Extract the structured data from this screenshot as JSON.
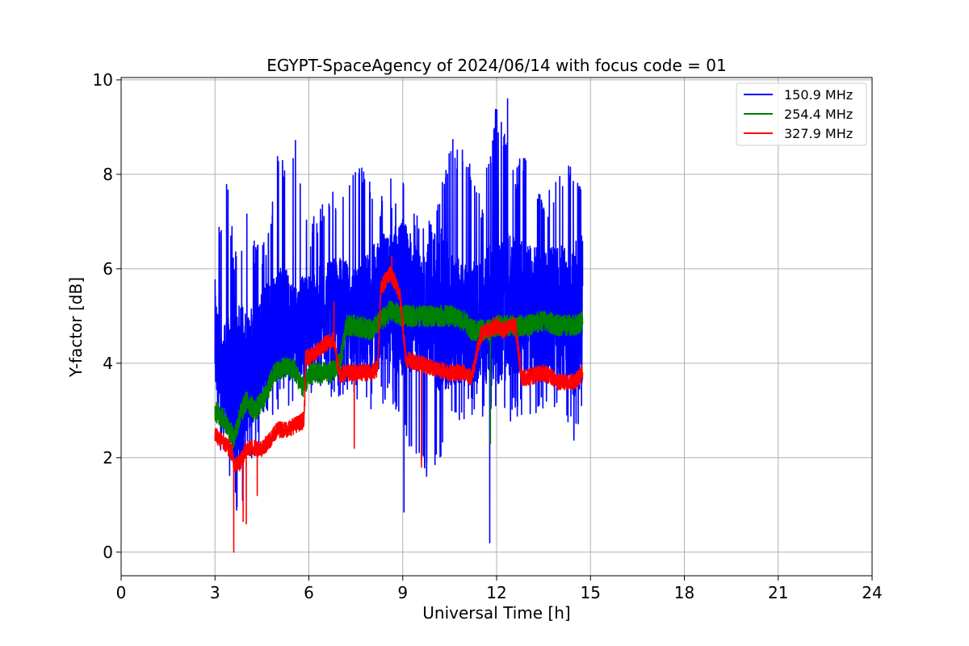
{
  "chart_data": {
    "type": "line",
    "title": "EGYPT-SpaceAgency of 2024/06/14 with focus code = 01",
    "xlabel": "Universal Time [h]",
    "ylabel": "Y-factor [dB]",
    "xlim": [
      0,
      24
    ],
    "ylim": [
      -0.5,
      10.05
    ],
    "xticks": [
      0,
      3,
      6,
      9,
      12,
      15,
      18,
      21,
      24
    ],
    "yticks": [
      0,
      2,
      4,
      6,
      8,
      10
    ],
    "grid": true,
    "legend_position": "top-right",
    "series": [
      {
        "name": "150.9 MHz",
        "color": "#0000ff",
        "x": [
          3.0,
          3.2,
          3.4,
          3.6,
          3.8,
          4.0,
          4.2,
          4.4,
          4.6,
          4.8,
          5.0,
          5.3,
          5.6,
          6.0,
          6.5,
          7.0,
          7.5,
          8.0,
          8.5,
          9.0,
          9.5,
          10.0,
          10.5,
          11.0,
          11.5,
          12.0,
          12.5,
          13.0,
          13.5,
          14.0,
          14.5,
          14.75
        ],
        "y": [
          4.5,
          3.5,
          3.8,
          3.2,
          3.6,
          3.6,
          4.0,
          4.2,
          4.5,
          4.6,
          4.9,
          4.8,
          4.7,
          4.9,
          5.0,
          5.1,
          4.9,
          5.1,
          5.4,
          5.3,
          5.2,
          5.0,
          5.0,
          4.8,
          4.9,
          5.1,
          5.2,
          5.1,
          5.0,
          5.0,
          4.9,
          5.2
        ],
        "y_low": [
          2.5,
          2.0,
          1.7,
          1.0,
          0.7,
          1.5,
          2.0,
          2.3,
          2.6,
          2.8,
          3.0,
          3.0,
          3.1,
          3.3,
          3.3,
          3.3,
          3.2,
          3.0,
          3.2,
          2.6,
          1.7,
          1.4,
          2.7,
          2.8,
          2.9,
          2.6,
          2.8,
          2.9,
          2.8,
          2.7,
          2.3,
          2.7
        ],
        "y_high": [
          7.6,
          7.0,
          8.2,
          6.5,
          6.3,
          7.4,
          6.8,
          6.5,
          6.6,
          7.5,
          8.7,
          8.0,
          8.8,
          7.0,
          7.5,
          7.8,
          8.6,
          7.8,
          7.5,
          8.0,
          7.1,
          7.0,
          8.8,
          8.5,
          7.5,
          9.6,
          8.2,
          8.6,
          7.4,
          8.3,
          8.2,
          7.6
        ],
        "spikes": [
          [
            8.28,
            7.1
          ],
          [
            8.62,
            7.9
          ],
          [
            9.04,
            0.85
          ],
          [
            11.78,
            0.2
          ],
          [
            12.35,
            9.6
          ]
        ]
      },
      {
        "name": "254.4 MHz",
        "color": "#008000",
        "x": [
          3.0,
          3.3,
          3.6,
          3.8,
          4.0,
          4.3,
          4.6,
          4.9,
          5.2,
          5.5,
          5.8,
          6.1,
          6.4,
          6.7,
          7.0,
          7.2,
          7.5,
          8.0,
          8.3,
          8.6,
          9.0,
          9.5,
          10.0,
          10.5,
          11.0,
          11.2,
          11.8,
          12.0,
          12.5,
          13.0,
          13.5,
          14.0,
          14.5,
          14.75
        ],
        "y": [
          3.0,
          2.8,
          2.4,
          2.9,
          3.2,
          3.0,
          3.3,
          3.8,
          3.9,
          3.9,
          3.5,
          3.8,
          3.8,
          3.8,
          4.0,
          4.8,
          4.8,
          4.7,
          4.9,
          5.1,
          5.0,
          5.0,
          5.0,
          5.0,
          4.9,
          4.7,
          4.7,
          4.8,
          4.8,
          4.8,
          4.9,
          4.8,
          4.8,
          4.9
        ],
        "spikes": [
          [
            11.8,
            2.3
          ],
          [
            13.4,
            5.1
          ]
        ]
      },
      {
        "name": "327.9 MHz",
        "color": "#ff0000",
        "x": [
          3.0,
          3.3,
          3.55,
          3.6,
          3.8,
          4.0,
          4.2,
          4.5,
          4.8,
          5.0,
          5.3,
          5.6,
          5.85,
          5.9,
          6.2,
          6.5,
          6.8,
          7.0,
          7.1,
          7.5,
          8.0,
          8.2,
          8.3,
          8.6,
          8.9,
          9.1,
          9.5,
          10.0,
          10.5,
          11.0,
          11.2,
          11.5,
          12.0,
          12.2,
          12.6,
          12.8,
          13.0,
          13.5,
          14.0,
          14.5,
          14.75
        ],
        "y": [
          2.5,
          2.3,
          2.1,
          1.8,
          1.9,
          2.2,
          2.2,
          2.2,
          2.4,
          2.6,
          2.6,
          2.7,
          2.8,
          4.1,
          4.2,
          4.4,
          4.5,
          3.7,
          3.8,
          3.8,
          3.8,
          3.9,
          5.6,
          5.9,
          5.5,
          4.1,
          4.0,
          3.9,
          3.8,
          3.8,
          3.7,
          4.6,
          4.8,
          4.7,
          4.8,
          3.7,
          3.7,
          3.8,
          3.6,
          3.6,
          3.8
        ],
        "spikes": [
          [
            3.6,
            0.0
          ],
          [
            3.9,
            0.65
          ],
          [
            4.0,
            0.6
          ],
          [
            4.35,
            1.2
          ],
          [
            6.8,
            5.3
          ],
          [
            7.45,
            2.2
          ],
          [
            8.65,
            6.25
          ],
          [
            9.6,
            1.8
          ]
        ]
      }
    ]
  }
}
